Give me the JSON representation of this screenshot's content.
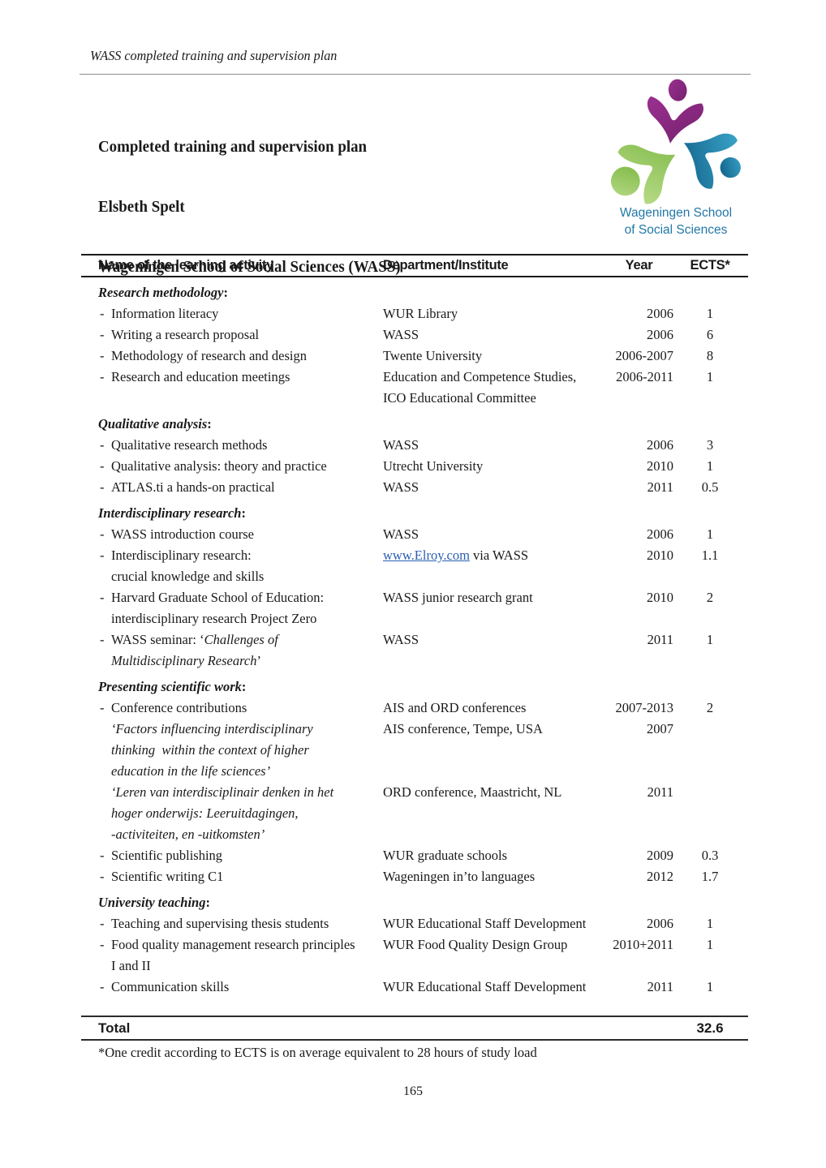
{
  "page": {
    "running_header": "WASS completed training and supervision plan",
    "footnote": "*One credit according to ECTS is on average equivalent to 28 hours of study load",
    "page_number": "165"
  },
  "title_block": {
    "line1": "Completed training and supervision plan",
    "line2": "Elsbeth Spelt",
    "line3": "Wageningen School of Social Sciences (WASS)"
  },
  "logo": {
    "text_line1": "Wageningen School",
    "text_line2": "of Social Sciences",
    "colors": {
      "purple": "#9b3090",
      "purple_dark": "#74216d",
      "green": "#7db845",
      "green_light": "#b7da86",
      "teal": "#1a75a0",
      "teal_dark": "#0d5c83",
      "teal_light": "#3ba3c9",
      "text": "#2278a8"
    }
  },
  "table": {
    "bullet_char": "-",
    "columns": [
      "Name of the learning activity",
      "Department/Institute",
      "Year",
      "ECTS*"
    ],
    "section_suffix": ":",
    "sections": [
      {
        "title": "Research methodology",
        "rows": [
          {
            "bullet": true,
            "activity": [
              [
                {
                  "t": "Information literacy"
                }
              ]
            ],
            "dept": [
              [
                {
                  "t": "WUR Library"
                }
              ]
            ],
            "year": "2006",
            "ects": "1"
          },
          {
            "bullet": true,
            "activity": [
              [
                {
                  "t": "Writing a research proposal"
                }
              ]
            ],
            "dept": [
              [
                {
                  "t": "WASS"
                }
              ]
            ],
            "year": "2006",
            "ects": "6"
          },
          {
            "bullet": true,
            "activity": [
              [
                {
                  "t": "Methodology of research and design"
                }
              ]
            ],
            "dept": [
              [
                {
                  "t": "Twente University"
                }
              ]
            ],
            "year": "2006-2007",
            "ects": "8"
          },
          {
            "bullet": true,
            "activity": [
              [
                {
                  "t": "Research and education meetings"
                }
              ]
            ],
            "dept": [
              [
                {
                  "t": "Education and Competence Studies,"
                }
              ],
              [
                {
                  "t": "ICO Educational Committee"
                }
              ]
            ],
            "year": "2006-2011",
            "ects": "1"
          }
        ]
      },
      {
        "title": "Qualitative analysis",
        "rows": [
          {
            "bullet": true,
            "activity": [
              [
                {
                  "t": "Qualitative research methods"
                }
              ]
            ],
            "dept": [
              [
                {
                  "t": "WASS"
                }
              ]
            ],
            "year": "2006",
            "ects": "3"
          },
          {
            "bullet": true,
            "activity": [
              [
                {
                  "t": "Qualitative analysis: theory and practice"
                }
              ]
            ],
            "dept": [
              [
                {
                  "t": "Utrecht University"
                }
              ]
            ],
            "year": "2010",
            "ects": "1"
          },
          {
            "bullet": true,
            "activity": [
              [
                {
                  "t": "ATLAS.ti a hands-on practical"
                }
              ]
            ],
            "dept": [
              [
                {
                  "t": "WASS"
                }
              ]
            ],
            "year": "2011",
            "ects": "0.5"
          }
        ]
      },
      {
        "title": "Interdisciplinary research",
        "rows": [
          {
            "bullet": true,
            "activity": [
              [
                {
                  "t": "WASS introduction course"
                }
              ]
            ],
            "dept": [
              [
                {
                  "t": "WASS"
                }
              ]
            ],
            "year": "2006",
            "ects": "1"
          },
          {
            "bullet": true,
            "activity": [
              [
                {
                  "t": "Interdisciplinary research:"
                }
              ],
              [
                {
                  "t": "crucial knowledge and skills"
                }
              ]
            ],
            "dept": [
              [
                {
                  "t": "www.Elroy.com",
                  "s": "link"
                },
                {
                  "t": " via WASS"
                }
              ]
            ],
            "year": "2010",
            "ects": "1.1"
          },
          {
            "bullet": true,
            "activity": [
              [
                {
                  "t": "Harvard Graduate School of Education:"
                }
              ],
              [
                {
                  "t": "interdisciplinary research Project Zero"
                }
              ]
            ],
            "dept": [
              [
                {
                  "t": "WASS junior research grant"
                }
              ]
            ],
            "year": "2010",
            "ects": "2"
          },
          {
            "bullet": true,
            "activity": [
              [
                {
                  "t": "WASS seminar: ‘"
                },
                {
                  "t": "Challenges of",
                  "s": "i"
                }
              ],
              [
                {
                  "t": "Multidisciplinary Research",
                  "s": "i"
                },
                {
                  "t": "’"
                }
              ]
            ],
            "dept": [
              [
                {
                  "t": "WASS"
                }
              ]
            ],
            "year": "2011",
            "ects": "1"
          }
        ]
      },
      {
        "title": "Presenting scientific work",
        "rows": [
          {
            "bullet": true,
            "activity": [
              [
                {
                  "t": "Conference contributions"
                }
              ]
            ],
            "dept": [
              [
                {
                  "t": "AIS and ORD conferences"
                }
              ]
            ],
            "year": "2007-2013",
            "ects": "2"
          },
          {
            "bullet": false,
            "activity": [
              [
                {
                  "t": "‘Factors influencing interdisciplinary",
                  "s": "i"
                }
              ],
              [
                {
                  "t": "thinking  within the context of higher",
                  "s": "i"
                }
              ],
              [
                {
                  "t": "education in the life sciences’",
                  "s": "i"
                }
              ]
            ],
            "dept": [
              [
                {
                  "t": "AIS conference, Tempe, USA"
                }
              ]
            ],
            "year": "2007",
            "ects": ""
          },
          {
            "bullet": false,
            "activity": [
              [
                {
                  "t": "‘Leren van interdisciplinair denken in het",
                  "s": "i"
                }
              ],
              [
                {
                  "t": "hoger onderwijs: Leeruitdagingen,",
                  "s": "i"
                }
              ],
              [
                {
                  "t": "-activiteiten, en -uitkomsten’",
                  "s": "i"
                }
              ]
            ],
            "dept": [
              [
                {
                  "t": "ORD conference, Maastricht, NL"
                }
              ]
            ],
            "year": "2011",
            "ects": ""
          },
          {
            "bullet": true,
            "activity": [
              [
                {
                  "t": "Scientific publishing"
                }
              ]
            ],
            "dept": [
              [
                {
                  "t": "WUR graduate schools"
                }
              ]
            ],
            "year": "2009",
            "ects": "0.3"
          },
          {
            "bullet": true,
            "activity": [
              [
                {
                  "t": "Scientific writing C1"
                }
              ]
            ],
            "dept": [
              [
                {
                  "t": "Wageningen in’to languages"
                }
              ]
            ],
            "year": "2012",
            "ects": "1.7"
          }
        ]
      },
      {
        "title": "University teaching",
        "rows": [
          {
            "bullet": true,
            "activity": [
              [
                {
                  "t": "Teaching and supervising thesis students"
                }
              ]
            ],
            "dept": [
              [
                {
                  "t": "WUR Educational Staff Development"
                }
              ]
            ],
            "year": "2006",
            "ects": "1"
          },
          {
            "bullet": true,
            "activity": [
              [
                {
                  "t": "Food quality management research principles"
                }
              ],
              [
                {
                  "t": "I and II"
                }
              ]
            ],
            "dept": [
              [
                {
                  "t": "WUR Food Quality Design Group"
                }
              ]
            ],
            "year": "2010+2011",
            "ects": "1"
          },
          {
            "bullet": true,
            "activity": [
              [
                {
                  "t": "Communication skills"
                }
              ]
            ],
            "dept": [
              [
                {
                  "t": "WUR Educational Staff Development"
                }
              ]
            ],
            "year": "2011",
            "ects": "1"
          }
        ]
      }
    ],
    "total_label": "Total",
    "total_value": "32.6"
  }
}
